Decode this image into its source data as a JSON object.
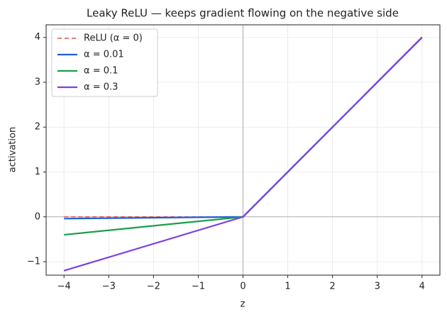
{
  "chart_data": {
    "type": "line",
    "title": "Leaky ReLU — keeps gradient flowing on the negative side",
    "x_label": "z",
    "y_label": "activation",
    "x": [
      -4,
      0,
      4
    ],
    "series": [
      {
        "name": "ReLU (α = 0)",
        "color": "#e05252",
        "linestyle": "dashed",
        "values": [
          0,
          0,
          4
        ]
      },
      {
        "name": "α = 0.01",
        "color": "#1f5fd6",
        "linestyle": "solid",
        "values": [
          -0.04,
          0,
          4
        ]
      },
      {
        "name": "α = 0.1",
        "color": "#1a9e4b",
        "linestyle": "solid",
        "values": [
          -0.4,
          0,
          4
        ]
      },
      {
        "name": "α = 0.3",
        "color": "#7b3fe4",
        "linestyle": "solid",
        "values": [
          -1.2,
          0,
          4
        ]
      }
    ],
    "xlim": [
      -4.4,
      4.4
    ],
    "ylim": [
      -1.3,
      4.28
    ],
    "xticks": [
      {
        "value": -4,
        "label": "−4"
      },
      {
        "value": -3,
        "label": "−3"
      },
      {
        "value": -2,
        "label": "−2"
      },
      {
        "value": -1,
        "label": "−1"
      },
      0,
      1,
      2,
      3,
      4
    ],
    "yticks": [
      {
        "value": -1,
        "label": "−1"
      },
      0,
      1,
      2,
      3,
      4
    ],
    "grid": true,
    "zero_lines": true,
    "legend": "upper left"
  }
}
